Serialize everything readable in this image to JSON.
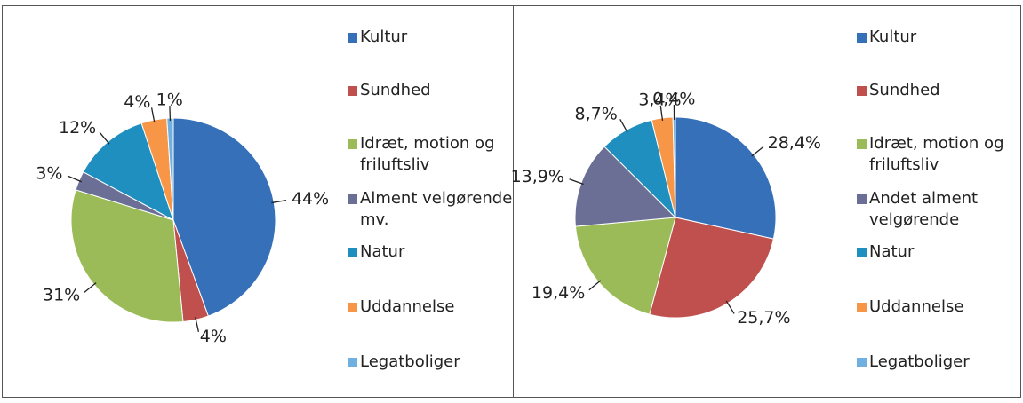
{
  "chart_data": [
    {
      "type": "pie",
      "categories": [
        "Kultur",
        "Sundhed",
        "Idræt, motion og friluftsliv",
        "Alment velgørende mv.",
        "Natur",
        "Uddannelse",
        "Legatboliger"
      ],
      "values": [
        44,
        4,
        31,
        3,
        12,
        4,
        1
      ],
      "value_labels": [
        "44%",
        "4%",
        "31%",
        "3%",
        "12%",
        "4%",
        "1%"
      ],
      "colors": [
        "#3670b8",
        "#c0504d",
        "#9bbb59",
        "#6b6f96",
        "#1f8fc0",
        "#f79646",
        "#6fb0e0"
      ]
    },
    {
      "type": "pie",
      "categories": [
        "Kultur",
        "Sundhed",
        "Idræt, motion og friluftsliv",
        "Andet alment velgørende",
        "Natur",
        "Uddannelse",
        "Legatboliger"
      ],
      "values": [
        28.4,
        25.7,
        19.4,
        13.9,
        8.7,
        3.4,
        0.4
      ],
      "value_labels": [
        "28,4%",
        "25,7%",
        "19,4%",
        "13,9%",
        "8,7%",
        "3,4%",
        "0,4%"
      ],
      "colors": [
        "#3670b8",
        "#c0504d",
        "#9bbb59",
        "#6b6f96",
        "#1f8fc0",
        "#f79646",
        "#6fb0e0"
      ]
    }
  ]
}
